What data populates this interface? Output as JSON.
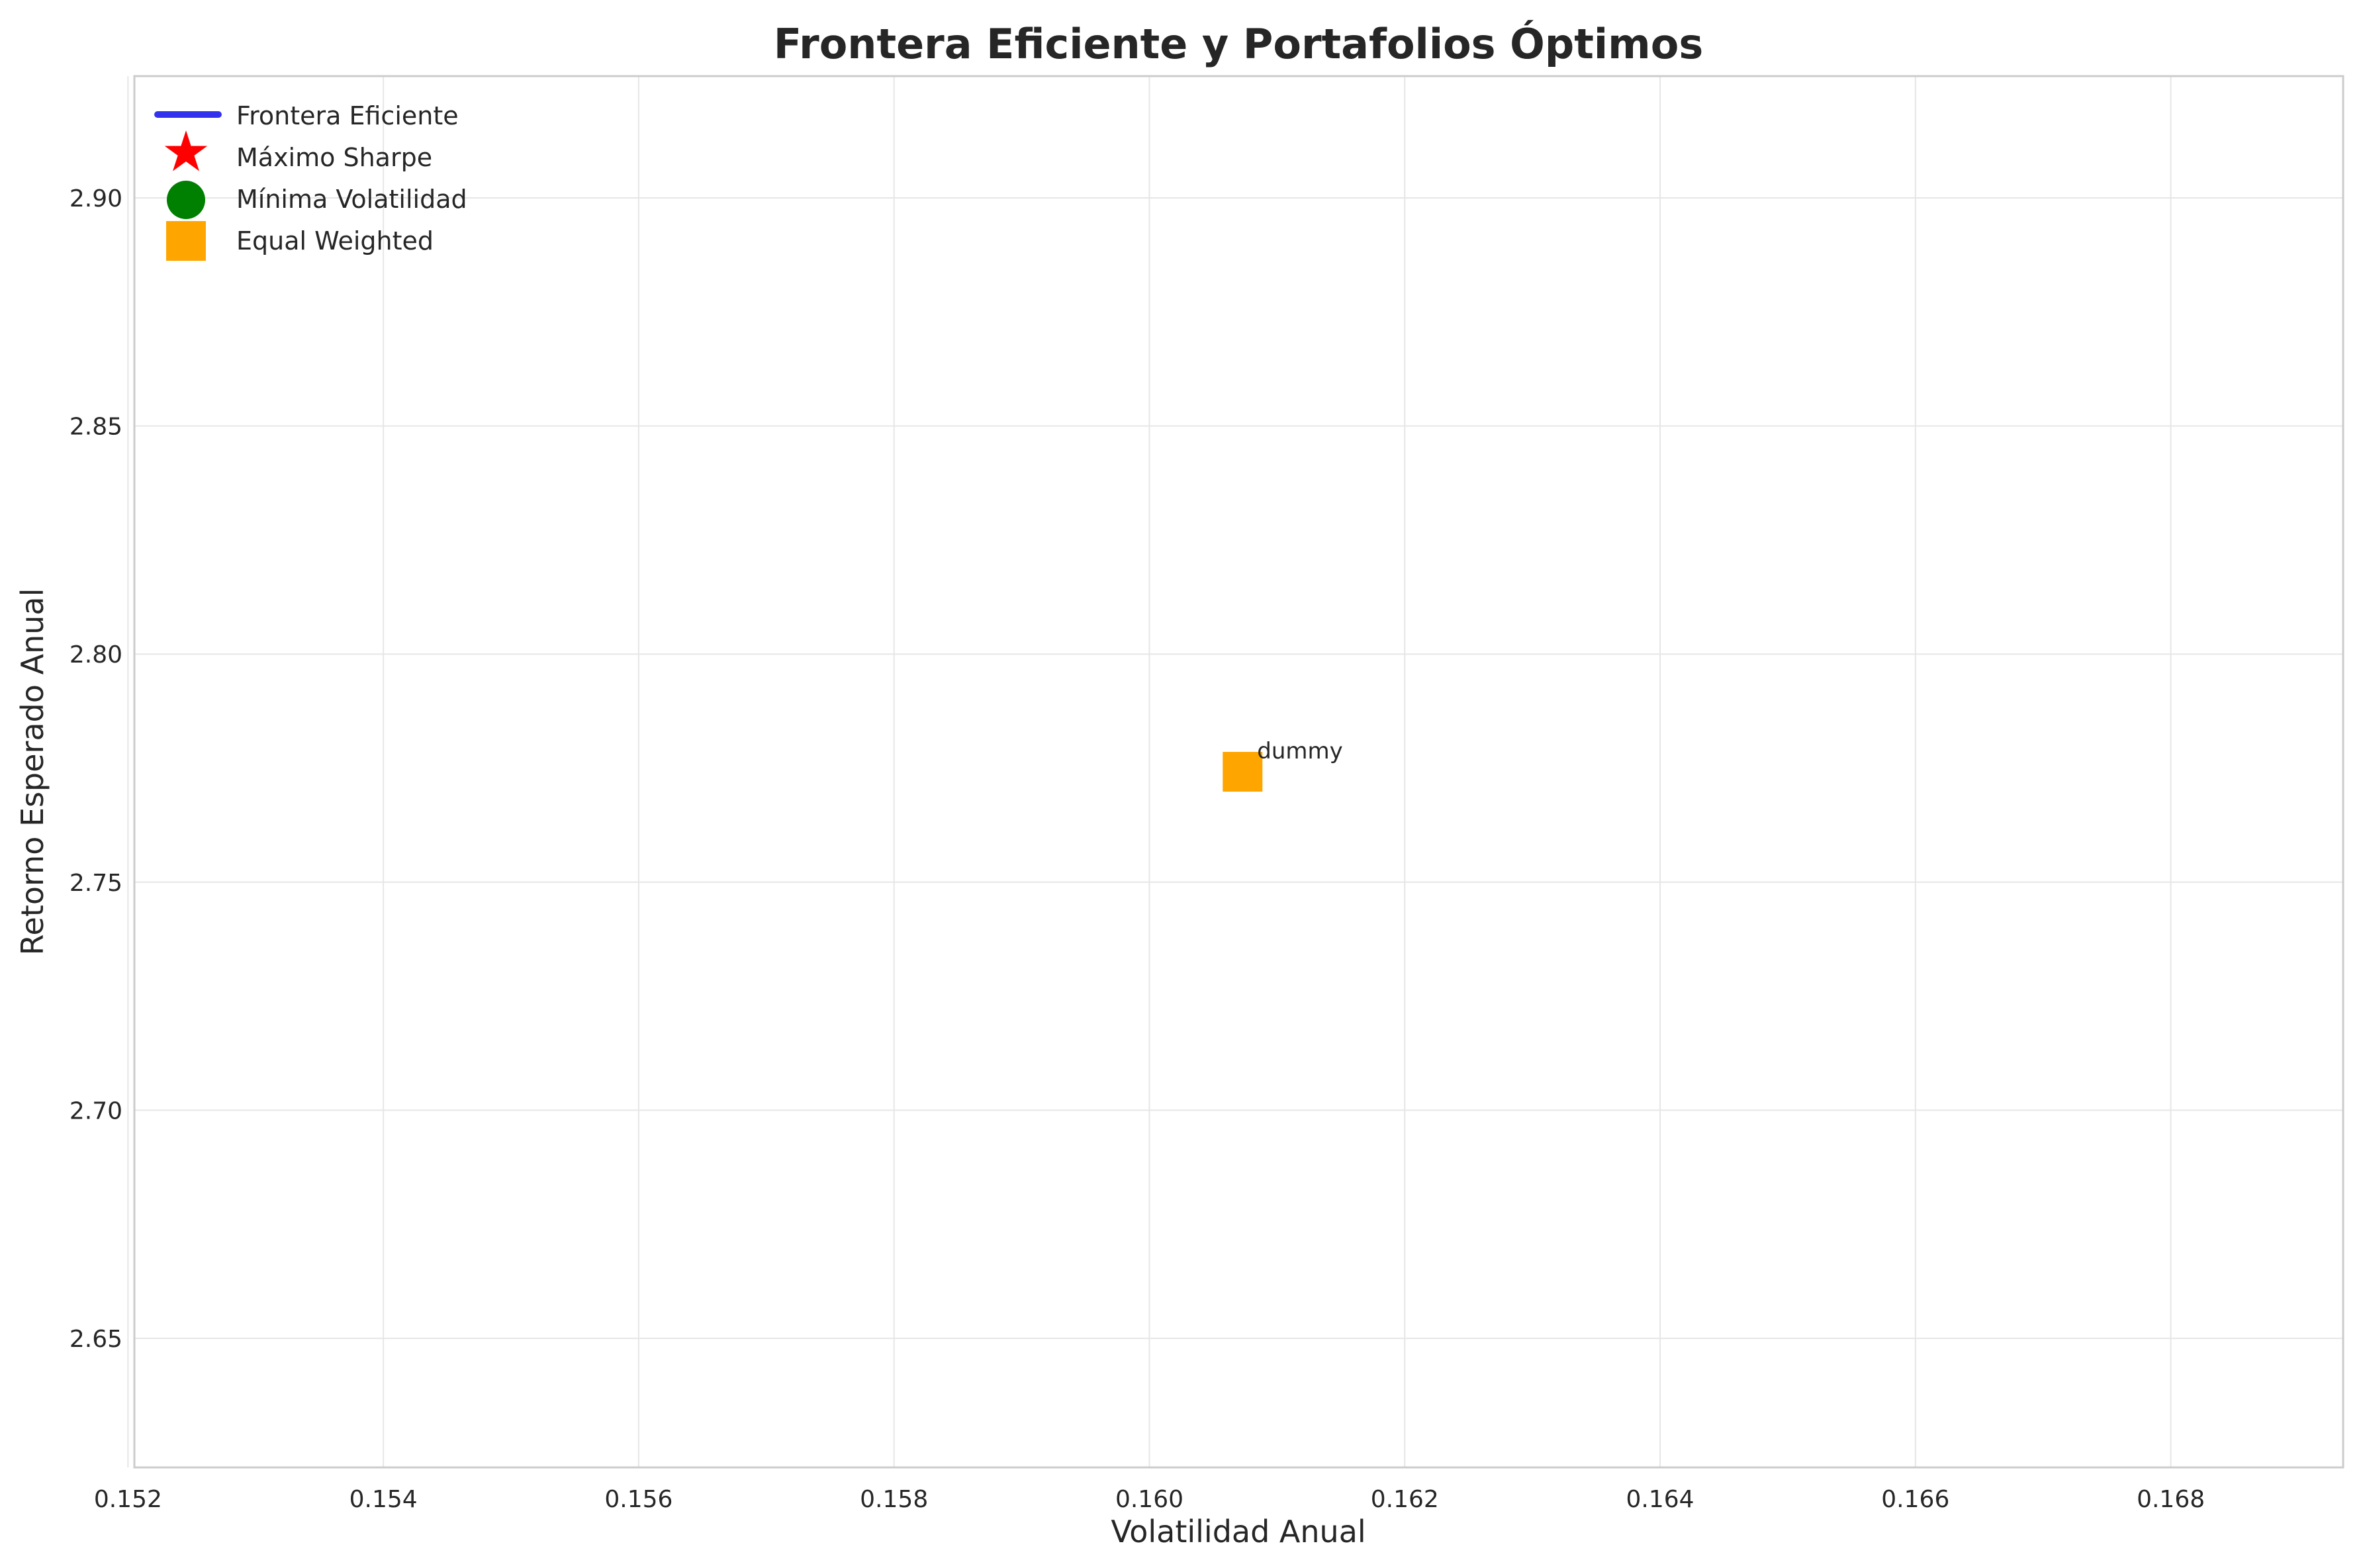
{
  "chart_data": {
    "type": "scatter",
    "title": "Frontera Eficiente y Portafolios Óptimos",
    "xlabel": "Volatilidad Anual",
    "ylabel": "Retorno Esperado Anual",
    "xlim": [
      0.15205,
      0.16935
    ],
    "ylim": [
      2.6217,
      2.9267
    ],
    "xticks": [
      "0.152",
      "0.154",
      "0.156",
      "0.158",
      "0.160",
      "0.162",
      "0.164",
      "0.166",
      "0.168"
    ],
    "yticks": [
      "2.65",
      "2.70",
      "2.75",
      "2.80",
      "2.85",
      "2.90"
    ],
    "grid": true,
    "legend_position": "top-left",
    "series": [
      {
        "name": "Frontera Eficiente",
        "kind": "line",
        "color": "#3333ee",
        "points": []
      },
      {
        "name": "Máximo Sharpe",
        "kind": "star",
        "color": "#ff0000",
        "points": [
          {
            "x": 0.16073,
            "y": 2.7742
          }
        ]
      },
      {
        "name": "Mínima Volatilidad",
        "kind": "circle",
        "color": "#008000",
        "points": [
          {
            "x": 0.16073,
            "y": 2.7742
          }
        ]
      },
      {
        "name": "Equal Weighted",
        "kind": "square",
        "color": "#ffa500",
        "points": [
          {
            "x": 0.16073,
            "y": 2.7742
          }
        ]
      }
    ],
    "annotations": [
      {
        "text": "dummy",
        "x": 0.16073,
        "y": 2.7742
      }
    ]
  }
}
